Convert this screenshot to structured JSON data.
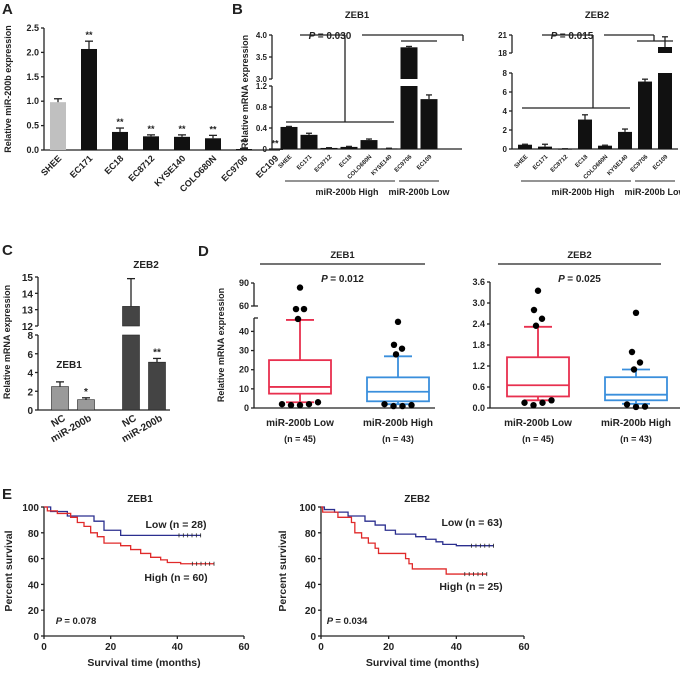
{
  "chart_data": [
    {
      "panel": "A",
      "type": "bar",
      "title": "",
      "ylabel": "Relative miR-200b expression",
      "xlabel": "",
      "ylim": [
        0,
        2.5
      ],
      "yticks": [
        "0.0",
        "0.5",
        "1.0",
        "1.5",
        "2.0",
        "2.5"
      ],
      "categories": [
        "SHEE",
        "EC171",
        "EC18",
        "EC8712",
        "KYSE140",
        "COLO680N",
        "EC9706",
        "EC109"
      ],
      "values": [
        0.98,
        2.07,
        0.37,
        0.28,
        0.27,
        0.24,
        0.02,
        0.01
      ],
      "errors": [
        0.07,
        0.16,
        0.08,
        0.03,
        0.04,
        0.06,
        0.01,
        0.005
      ],
      "colors": [
        "#c0c0c0",
        "#111111",
        "#111111",
        "#111111",
        "#111111",
        "#111111",
        "#111111",
        "#111111"
      ],
      "annotations": [
        "",
        "**",
        "**",
        "**",
        "**",
        "**",
        "**",
        "**"
      ]
    },
    {
      "panel": "B",
      "type": "bar",
      "title": "ZEB1",
      "ylabel": "Relative mRNA expression",
      "ylim_lower": [
        0,
        1.2
      ],
      "ylim_upper": [
        3.0,
        4.0
      ],
      "yticks_lower": [
        "0",
        "0.4",
        "0.8",
        "1.2"
      ],
      "yticks_upper": [
        "3.0",
        "3.5",
        "4.0"
      ],
      "categories": [
        "SHEE",
        "EC171",
        "EC8712",
        "EC18",
        "COLO680N",
        "KYSE140",
        "EC9706",
        "EC109"
      ],
      "values": [
        0.42,
        0.27,
        0.02,
        0.04,
        0.17,
        0.01,
        3.72,
        0.95
      ],
      "errors": [
        0.01,
        0.03,
        0.005,
        0.01,
        0.02,
        0.005,
        0.02,
        0.08
      ],
      "groups": [
        {
          "label": "miR-200b High",
          "members": 6
        },
        {
          "label": "miR-200b Low",
          "members": 2
        }
      ],
      "pvalue": "= 0.030",
      "p_symbol": "P"
    },
    {
      "panel": "B",
      "type": "bar",
      "title": "ZEB2",
      "ylim_lower": [
        0,
        8
      ],
      "ylim_upper": [
        18,
        21
      ],
      "yticks_lower": [
        "0",
        "2",
        "4",
        "6",
        "8"
      ],
      "yticks_upper": [
        "18",
        "21"
      ],
      "categories": [
        "SHEE",
        "EC171",
        "EC8712",
        "EC18",
        "COLO680N",
        "KYSE140",
        "EC9706",
        "EC109"
      ],
      "values": [
        0.45,
        0.25,
        0.02,
        3.1,
        0.35,
        1.8,
        7.1,
        19.0
      ],
      "errors": [
        0.05,
        0.25,
        0.01,
        0.5,
        0.05,
        0.3,
        0.25,
        1.7
      ],
      "groups": [
        {
          "label": "miR-200b High",
          "members": 6
        },
        {
          "label": "miR-200b Low",
          "members": 2
        }
      ],
      "pvalue": "= 0.015",
      "p_symbol": "P"
    },
    {
      "panel": "C",
      "type": "bar",
      "ylabel": "Relative mRNA expression",
      "ylim_lower": [
        0,
        8
      ],
      "ylim_upper": [
        12,
        15
      ],
      "yticks_lower": [
        "0",
        "2",
        "4",
        "6",
        "8"
      ],
      "yticks_upper": [
        "12",
        "13",
        "14",
        "15"
      ],
      "groups": [
        {
          "label": "ZEB1",
          "color": "#9a9a9a",
          "categories": [
            "NC",
            "miR-200b"
          ],
          "values": [
            2.5,
            1.1
          ],
          "errors": [
            0.5,
            0.2
          ],
          "annotations": [
            "",
            "*"
          ]
        },
        {
          "label": "ZEB2",
          "color": "#444444",
          "categories": [
            "NC",
            "miR-200b"
          ],
          "values": [
            13.2,
            5.1
          ],
          "errors": [
            1.7,
            0.4
          ],
          "annotations": [
            "",
            "**"
          ]
        }
      ]
    },
    {
      "panel": "D",
      "type": "box",
      "title": "ZEB1",
      "ylabel": "Relative mRNA expression",
      "ylim_lower": [
        0,
        47
      ],
      "ylim_upper": [
        60,
        90
      ],
      "yticks_lower": [
        "0",
        "10",
        "20",
        "30",
        "40"
      ],
      "yticks_upper": [
        "60",
        "90"
      ],
      "pvalue": "= 0.012",
      "p_symbol": "P",
      "boxes": [
        {
          "label": "miR-200b Low",
          "n": "(n = 45)",
          "color": "#e8304f",
          "whisker_low": 3,
          "q1": 7.5,
          "median": 11,
          "q3": 25,
          "whisker_high": 46,
          "outliers": [
            84,
            56,
            56,
            46.5,
            2,
            1.5,
            1.5,
            2,
            3
          ]
        },
        {
          "label": "miR-200b High",
          "n": "(n = 43)",
          "color": "#3a8fdc",
          "whisker_low": 2,
          "q1": 3.5,
          "median": 8.5,
          "q3": 16,
          "whisker_high": 27,
          "outliers": [
            45,
            33,
            31,
            28,
            2,
            1,
            1,
            1.5
          ]
        }
      ]
    },
    {
      "panel": "D",
      "type": "box",
      "title": "ZEB2",
      "ylim": [
        0,
        3.6
      ],
      "yticks": [
        "0.0",
        "0.6",
        "1.2",
        "1.8",
        "2.4",
        "3.0",
        "3.6"
      ],
      "pvalue": "= 0.025",
      "p_symbol": "P",
      "boxes": [
        {
          "label": "miR-200b Low",
          "n": "(n = 45)",
          "color": "#e8304f",
          "whisker_low": 0.22,
          "q1": 0.33,
          "median": 0.65,
          "q3": 1.45,
          "whisker_high": 2.32,
          "outliers": [
            3.35,
            2.8,
            2.55,
            2.35,
            0.15,
            0.08,
            0.15,
            0.22
          ]
        },
        {
          "label": "miR-200b High",
          "n": "(n = 43)",
          "color": "#3a8fdc",
          "whisker_low": 0.12,
          "q1": 0.22,
          "median": 0.38,
          "q3": 0.88,
          "whisker_high": 1.1,
          "outliers": [
            2.72,
            1.6,
            1.3,
            1.1,
            0.1,
            0.03,
            0.04
          ]
        }
      ]
    },
    {
      "panel": "E",
      "type": "line",
      "title": "ZEB1",
      "xlabel": "Survival time (months)",
      "ylabel": "Percent survival",
      "xlim": [
        0,
        60
      ],
      "ylim": [
        0,
        100
      ],
      "xticks": [
        "0",
        "20",
        "40",
        "60"
      ],
      "yticks": [
        "0",
        "20",
        "40",
        "60",
        "80",
        "100"
      ],
      "pvalue": "= 0.078",
      "p_symbol": "P",
      "series": [
        {
          "name": "Low (n = 28)",
          "color": "#2b2f8f",
          "x": [
            0,
            2,
            2,
            7,
            7,
            15,
            15,
            18,
            18,
            23,
            23,
            47
          ],
          "y": [
            100,
            100,
            96.5,
            96.5,
            93,
            93,
            89,
            89,
            82,
            82,
            78,
            78
          ]
        },
        {
          "name": "High (n = 60)",
          "color": "#e02a2a",
          "x": [
            0,
            1,
            1,
            4,
            4,
            8,
            8,
            10,
            10,
            12,
            12,
            14,
            14,
            16,
            16,
            18,
            18,
            23,
            23,
            26,
            26,
            29,
            29,
            32,
            32,
            35,
            35,
            37,
            37,
            41,
            41,
            51
          ],
          "y": [
            100,
            100,
            97,
            97,
            95,
            95,
            92,
            92,
            88,
            88,
            85,
            85,
            80,
            80,
            77,
            77,
            72,
            72,
            70,
            70,
            67,
            67,
            64,
            64,
            61,
            61,
            59,
            59,
            57,
            57,
            56,
            56
          ]
        }
      ]
    },
    {
      "panel": "E",
      "type": "line",
      "title": "ZEB2",
      "xlabel": "Survival time (months)",
      "ylabel": "Percent survival",
      "xlim": [
        0,
        60
      ],
      "ylim": [
        0,
        100
      ],
      "xticks": [
        "0",
        "20",
        "40",
        "60"
      ],
      "yticks": [
        "0",
        "20",
        "40",
        "60",
        "80",
        "100"
      ],
      "pvalue": "= 0.034",
      "p_symbol": "P",
      "series": [
        {
          "name": "Low (n = 63)",
          "color": "#2b2f8f",
          "x": [
            0,
            1,
            1,
            4,
            4,
            8,
            8,
            13,
            13,
            16,
            16,
            19,
            19,
            22,
            22,
            28,
            28,
            31,
            31,
            34,
            34,
            36,
            36,
            40,
            40,
            51
          ],
          "y": [
            100,
            100,
            98,
            98,
            96,
            96,
            93,
            93,
            89,
            89,
            86,
            86,
            82,
            82,
            79,
            79,
            77,
            77,
            75,
            75,
            73,
            73,
            71,
            71,
            70,
            70
          ]
        },
        {
          "name": "High (n = 25)",
          "color": "#e02a2a",
          "x": [
            0,
            0.5,
            0.5,
            5,
            5,
            9,
            9,
            10,
            10,
            12,
            12,
            14,
            14,
            16,
            16,
            17,
            17,
            25,
            25,
            26,
            26,
            27,
            27,
            37,
            37,
            49
          ],
          "y": [
            100,
            100,
            96,
            96,
            92,
            92,
            88,
            88,
            80,
            80,
            76,
            76,
            72,
            72,
            68,
            68,
            64,
            64,
            60,
            60,
            56,
            56,
            52,
            52,
            48,
            48
          ]
        }
      ]
    }
  ],
  "panel_labels": [
    "A",
    "B",
    "C",
    "D",
    "E"
  ]
}
